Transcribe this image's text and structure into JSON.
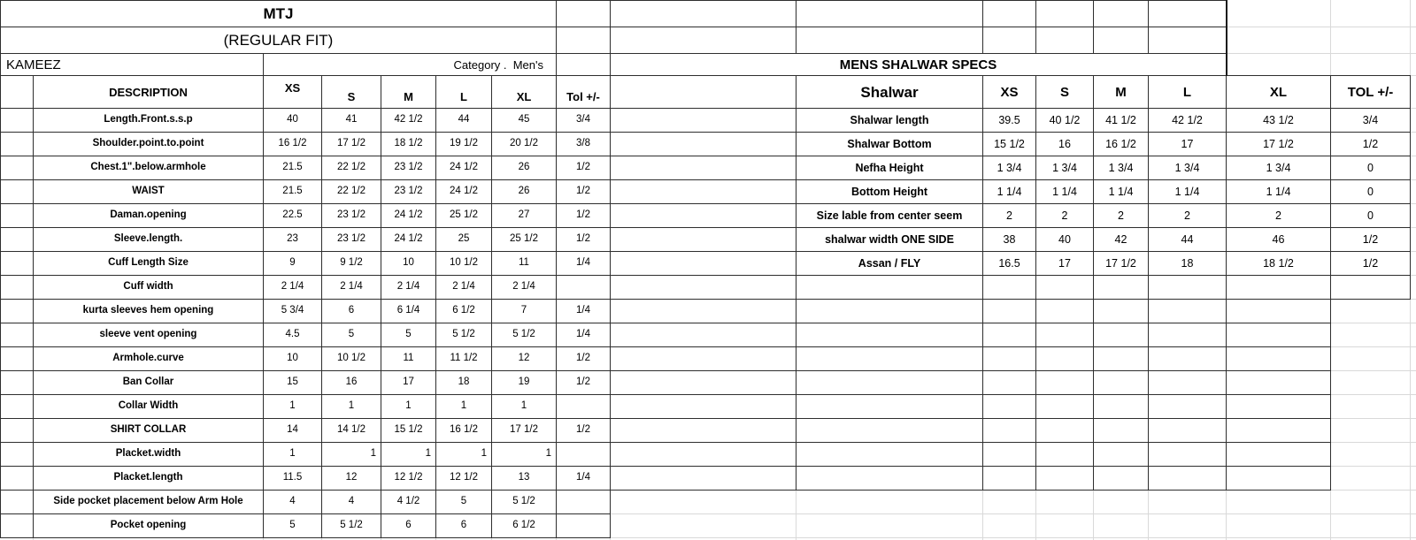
{
  "header": {
    "brand": "MTJ",
    "fit": "(REGULAR FIT)",
    "left_title": "KAMEEZ",
    "category": "Category .  Men's",
    "right_title": "MENS SHALWAR SPECS"
  },
  "kameez": {
    "columns": [
      "DESCRIPTION",
      "XS",
      "S",
      "M",
      "L",
      "XL",
      "Tol +/-"
    ],
    "rows": [
      {
        "label": "Length.Front.s.s.p",
        "values": [
          "40",
          "41",
          "42 1/2",
          "44",
          "45"
        ],
        "tol": "3/4"
      },
      {
        "label": "Shoulder.point.to.point",
        "values": [
          "16 1/2",
          "17 1/2",
          "18 1/2",
          "19 1/2",
          "20 1/2"
        ],
        "tol": "3/8"
      },
      {
        "label": "Chest.1\".below.armhole",
        "values": [
          "21.5",
          "22 1/2",
          "23 1/2",
          "24 1/2",
          "26"
        ],
        "tol": "1/2"
      },
      {
        "label": "WAIST",
        "values": [
          "21.5",
          "22 1/2",
          "23 1/2",
          "24 1/2",
          "26"
        ],
        "tol": "1/2"
      },
      {
        "label": "Daman.opening",
        "values": [
          "22.5",
          "23 1/2",
          "24 1/2",
          "25 1/2",
          "27"
        ],
        "tol": "1/2"
      },
      {
        "label": "Sleeve.length.",
        "values": [
          "23",
          "23 1/2",
          "24 1/2",
          "25",
          "25 1/2"
        ],
        "tol": "1/2"
      },
      {
        "label": "Cuff Length Size",
        "values": [
          "9",
          "9 1/2",
          "10",
          "10 1/2",
          "11"
        ],
        "tol": "1/4"
      },
      {
        "label": "Cuff width",
        "values": [
          "2 1/4",
          "2 1/4",
          "2 1/4",
          "2 1/4",
          "2 1/4"
        ],
        "tol": ""
      },
      {
        "label": "kurta sleeves hem opening",
        "values": [
          "5 3/4",
          "6",
          "6 1/4",
          "6 1/2",
          "7"
        ],
        "tol": "1/4"
      },
      {
        "label": "sleeve vent opening",
        "values": [
          "4.5",
          "5",
          "5",
          "5 1/2",
          "5 1/2"
        ],
        "tol": "1/4"
      },
      {
        "label": "Armhole.curve",
        "values": [
          "10",
          "10 1/2",
          "11",
          "11 1/2",
          "12"
        ],
        "tol": "1/2"
      },
      {
        "label": "Ban Collar",
        "values": [
          "15",
          "16",
          "17",
          "18",
          "19"
        ],
        "tol": "1/2"
      },
      {
        "label": "Collar Width",
        "values": [
          "1",
          "1",
          "1",
          "1",
          "1"
        ],
        "tol": ""
      },
      {
        "label": "SHIRT COLLAR",
        "values": [
          "14",
          "14 1/2",
          "15 1/2",
          "16 1/2",
          "17 1/2"
        ],
        "tol": "1/2"
      },
      {
        "label": "Placket.width",
        "values": [
          "1",
          "1",
          "1",
          "1",
          "1"
        ],
        "tol": ""
      },
      {
        "label": "Placket.length",
        "values": [
          "11.5",
          "12",
          "12 1/2",
          "12 1/2",
          "13"
        ],
        "tol": "1/4"
      },
      {
        "label": "Side pocket placement below Arm Hole",
        "values": [
          "4",
          "4",
          "4 1/2",
          "5",
          "5 1/2"
        ],
        "tol": ""
      },
      {
        "label": "Pocket opening",
        "values": [
          "5",
          "5 1/2",
          "6",
          "6",
          "6 1/2"
        ],
        "tol": ""
      }
    ]
  },
  "shalwar": {
    "columns": [
      "Shalwar",
      "XS",
      "S",
      "M",
      "L",
      "XL",
      "TOL +/-"
    ],
    "rows": [
      {
        "label": "Shalwar length",
        "values": [
          "39.5",
          "40 1/2",
          "41 1/2",
          "42 1/2",
          "43 1/2"
        ],
        "tol": "3/4"
      },
      {
        "label": "Shalwar Bottom",
        "values": [
          "15 1/2",
          "16",
          "16 1/2",
          "17",
          "17 1/2"
        ],
        "tol": "1/2"
      },
      {
        "label": "Nefha Height",
        "values": [
          "1 3/4",
          "1 3/4",
          "1 3/4",
          "1 3/4",
          "1 3/4"
        ],
        "tol": "0"
      },
      {
        "label": "Bottom Height",
        "values": [
          "1 1/4",
          "1 1/4",
          "1 1/4",
          "1 1/4",
          "1 1/4"
        ],
        "tol": "0"
      },
      {
        "label": "Size lable from center seem",
        "values": [
          "2",
          "2",
          "2",
          "2",
          "2"
        ],
        "tol": "0"
      },
      {
        "label": "shalwar width ONE SIDE",
        "values": [
          "38",
          "40",
          "42",
          "44",
          "46"
        ],
        "tol": "1/2"
      },
      {
        "label": "Assan / FLY",
        "values": [
          "16.5",
          "17",
          "17 1/2",
          "18",
          "18 1/2"
        ],
        "tol": "1/2"
      }
    ]
  },
  "colors": {
    "background": "#ffffff",
    "cell_border": "#2e2e2e",
    "gridline": "#d9d9d9",
    "text": "#000000"
  }
}
